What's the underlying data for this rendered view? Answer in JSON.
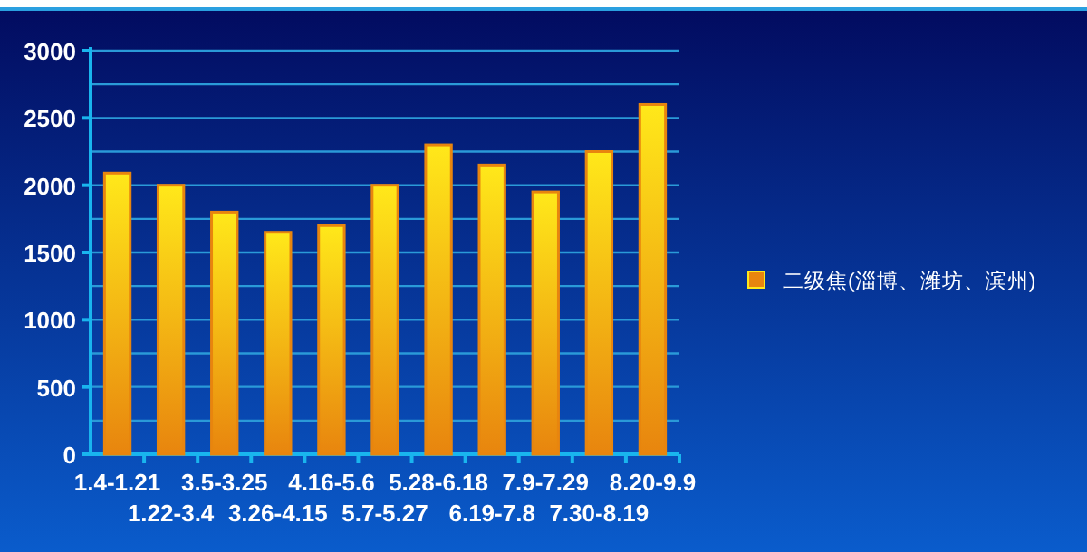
{
  "chart_data": {
    "type": "bar",
    "categories": [
      "1.4-1.21",
      "1.22-3.4",
      "3.5-3.25",
      "3.26-4.15",
      "4.16-5.6",
      "5.7-5.27",
      "5.28-6.18",
      "6.19-7.8",
      "7.9-7.29",
      "7.30-8.19",
      "8.20-9.9"
    ],
    "series": [
      {
        "name": "二级焦(淄博、潍坊、滨州)",
        "color": "#e8850e",
        "values": [
          2090,
          2000,
          1800,
          1650,
          1700,
          2000,
          2300,
          2150,
          1950,
          2250,
          2600
        ]
      }
    ],
    "ylim": [
      0,
      3000
    ],
    "yticks": [
      0,
      {
        "value": 250,
        "label": null
      },
      500,
      {
        "value": 750,
        "label": null
      },
      1000,
      {
        "value": 1250,
        "label": null
      },
      1500,
      {
        "value": 1750,
        "label": null
      },
      2000,
      {
        "value": 2250,
        "label": null
      },
      2500,
      {
        "value": 2750,
        "label": null
      },
      3000
    ],
    "grid": "y",
    "legend": "right"
  }
}
